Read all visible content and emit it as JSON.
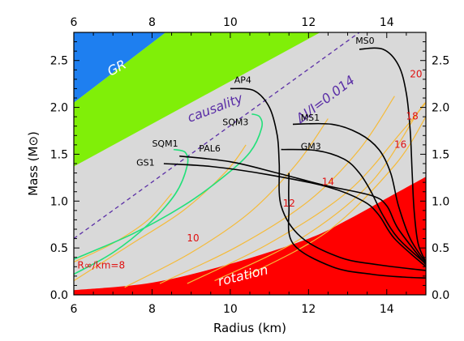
{
  "chart_data": {
    "type": "line",
    "xlabel": "Radius (km)",
    "ylabel": "Mass (M⊙)",
    "xlim": [
      6,
      15
    ],
    "ylim": [
      0,
      2.8
    ],
    "x_ticks": [
      "6",
      "8",
      "10",
      "12",
      "14"
    ],
    "y_ticks": [
      "0.0",
      "0.5",
      "1.0",
      "1.5",
      "2.0",
      "2.5"
    ],
    "x_tick_values": [
      6,
      8,
      10,
      12,
      14
    ],
    "y_tick_values": [
      0.0,
      0.5,
      1.0,
      1.5,
      2.0,
      2.5
    ],
    "grid": false,
    "colors": {
      "gr_region": "#1e7ff0",
      "causality_region": "#80ef08",
      "allowed_region": "#d9d9d9",
      "rotation_region": "#ff0000",
      "contours": "#f5bb3a",
      "strange_quark": "#22e07a",
      "hadronic": "#000000",
      "dashed_line": "#5a2ea6",
      "contour_labels": "#e01010"
    },
    "regions": [
      {
        "name": "GR",
        "label": "GR",
        "polygon": [
          [
            6,
            2.05
          ],
          [
            8.35,
            2.8
          ],
          [
            6,
            2.8
          ]
        ]
      },
      {
        "name": "causality",
        "label": "causality",
        "polygon": [
          [
            6,
            1.37
          ],
          [
            12.3,
            2.8
          ],
          [
            8.35,
            2.8
          ],
          [
            6,
            2.05
          ]
        ]
      },
      {
        "name": "rotation",
        "label": "rotation",
        "polygon": [
          [
            6,
            0.05
          ],
          [
            8,
            0.13
          ],
          [
            10,
            0.33
          ],
          [
            12,
            0.6
          ],
          [
            13,
            0.8
          ],
          [
            14,
            1.03
          ],
          [
            15,
            1.26
          ],
          [
            15,
            0
          ],
          [
            6,
            0
          ]
        ]
      }
    ],
    "dashed_line": {
      "label": "ΔI/I=0.014",
      "x": [
        6,
        13.3
      ],
      "y": [
        0.6,
        2.8
      ]
    },
    "contour_labels": [
      {
        "text": "R∞/km=8",
        "x": 6.7,
        "y": 0.28
      },
      {
        "text": "10",
        "x": 9.05,
        "y": 0.57
      },
      {
        "text": "12",
        "x": 11.5,
        "y": 0.94
      },
      {
        "text": "14",
        "x": 12.5,
        "y": 1.17
      },
      {
        "text": "16",
        "x": 14.35,
        "y": 1.57
      },
      {
        "text": "18",
        "x": 14.65,
        "y": 1.87
      },
      {
        "text": "20",
        "x": 14.75,
        "y": 2.32
      }
    ],
    "contours": [
      {
        "x": [
          6,
          7.0,
          7.9,
          8.5
        ],
        "y": [
          0.35,
          0.55,
          0.8,
          1.08
        ]
      },
      {
        "x": [
          6,
          7.5,
          8.8,
          9.9,
          10.4
        ],
        "y": [
          0.15,
          0.55,
          0.9,
          1.32,
          1.6
        ]
      },
      {
        "x": [
          7.3,
          9.0,
          10.5,
          11.7,
          12.5
        ],
        "y": [
          0.08,
          0.45,
          0.88,
          1.4,
          1.88
        ]
      },
      {
        "x": [
          8.2,
          10.2,
          12.0,
          13.3,
          14.2
        ],
        "y": [
          0.12,
          0.52,
          1.0,
          1.55,
          2.12
        ]
      },
      {
        "x": [
          8.9,
          11.0,
          13.0,
          14.4,
          15.0
        ],
        "y": [
          0.12,
          0.55,
          1.1,
          1.75,
          2.05
        ]
      },
      {
        "x": [
          9.6,
          11.8,
          13.6,
          14.8,
          15.0
        ],
        "y": [
          0.15,
          0.6,
          1.2,
          1.95,
          2.05
        ]
      },
      {
        "x": [
          10.4,
          12.5,
          14.2,
          15.0
        ],
        "y": [
          0.2,
          0.68,
          1.38,
          1.9
        ]
      }
    ],
    "series": [
      {
        "name": "SQM1",
        "kind": "strange_quark",
        "x": [
          6.0,
          7.0,
          7.9,
          8.6,
          8.9,
          8.85,
          8.55
        ],
        "y": [
          0.22,
          0.45,
          0.75,
          1.08,
          1.38,
          1.52,
          1.55
        ]
      },
      {
        "name": "SQM3",
        "kind": "strange_quark",
        "x": [
          6.0,
          7.5,
          8.8,
          9.8,
          10.5,
          10.8,
          10.75,
          10.55
        ],
        "y": [
          0.38,
          0.65,
          0.95,
          1.25,
          1.52,
          1.78,
          1.9,
          1.93
        ]
      },
      {
        "name": "GS1",
        "kind": "hadronic",
        "x": [
          8.3,
          9.5,
          11.0,
          12.5,
          13.4,
          13.8,
          14.2,
          15.0
        ],
        "y": [
          1.4,
          1.37,
          1.28,
          1.15,
          1.0,
          0.85,
          0.6,
          0.3
        ]
      },
      {
        "name": "PAL6",
        "kind": "hadronic",
        "x": [
          8.7,
          10.0,
          11.2,
          12.4,
          13.6,
          14.0,
          14.3,
          15.0
        ],
        "y": [
          1.48,
          1.42,
          1.3,
          1.17,
          1.06,
          0.95,
          0.7,
          0.32
        ]
      },
      {
        "name": "GM3",
        "kind": "hadronic",
        "x": [
          11.3,
          12.2,
          12.9,
          13.3,
          13.6,
          13.9,
          14.3,
          15.0
        ],
        "y": [
          1.55,
          1.54,
          1.45,
          1.3,
          1.1,
          0.85,
          0.6,
          0.33
        ]
      },
      {
        "name": "AP4",
        "kind": "hadronic",
        "x": [
          10.0,
          10.6,
          11.0,
          11.2,
          11.25,
          11.3,
          11.8,
          12.8,
          13.8,
          15.0
        ],
        "y": [
          2.2,
          2.18,
          2.0,
          1.7,
          1.4,
          0.95,
          0.62,
          0.4,
          0.32,
          0.26
        ]
      },
      {
        "name": "MS1",
        "kind": "hadronic",
        "x": [
          11.6,
          12.6,
          13.3,
          13.8,
          14.1,
          14.3,
          14.6,
          15.0
        ],
        "y": [
          1.82,
          1.82,
          1.72,
          1.55,
          1.3,
          0.95,
          0.6,
          0.34
        ]
      },
      {
        "name": "MS0",
        "kind": "hadronic",
        "x": [
          13.3,
          13.9,
          14.3,
          14.5,
          14.6,
          14.65,
          14.7,
          14.8,
          15.0
        ],
        "y": [
          2.62,
          2.62,
          2.45,
          2.15,
          1.75,
          1.3,
          0.9,
          0.55,
          0.35
        ]
      },
      {
        "name": "",
        "kind": "hadronic",
        "x": [
          11.5,
          11.5,
          11.6,
          12.6,
          13.6,
          14.4,
          15.0
        ],
        "y": [
          1.3,
          0.95,
          0.55,
          0.3,
          0.22,
          0.19,
          0.18
        ]
      }
    ],
    "series_labels": [
      {
        "text": "AP4",
        "x": 10.1,
        "y": 2.26
      },
      {
        "text": "MS0",
        "x": 13.2,
        "y": 2.68
      },
      {
        "text": "MS1",
        "x": 11.8,
        "y": 1.86
      },
      {
        "text": "SQM3",
        "x": 9.8,
        "y": 1.81
      },
      {
        "text": "SQM1",
        "x": 8.0,
        "y": 1.58
      },
      {
        "text": "PAL6",
        "x": 9.2,
        "y": 1.53
      },
      {
        "text": "GM3",
        "x": 11.8,
        "y": 1.55
      },
      {
        "text": "GS1",
        "x": 7.6,
        "y": 1.38
      }
    ]
  }
}
